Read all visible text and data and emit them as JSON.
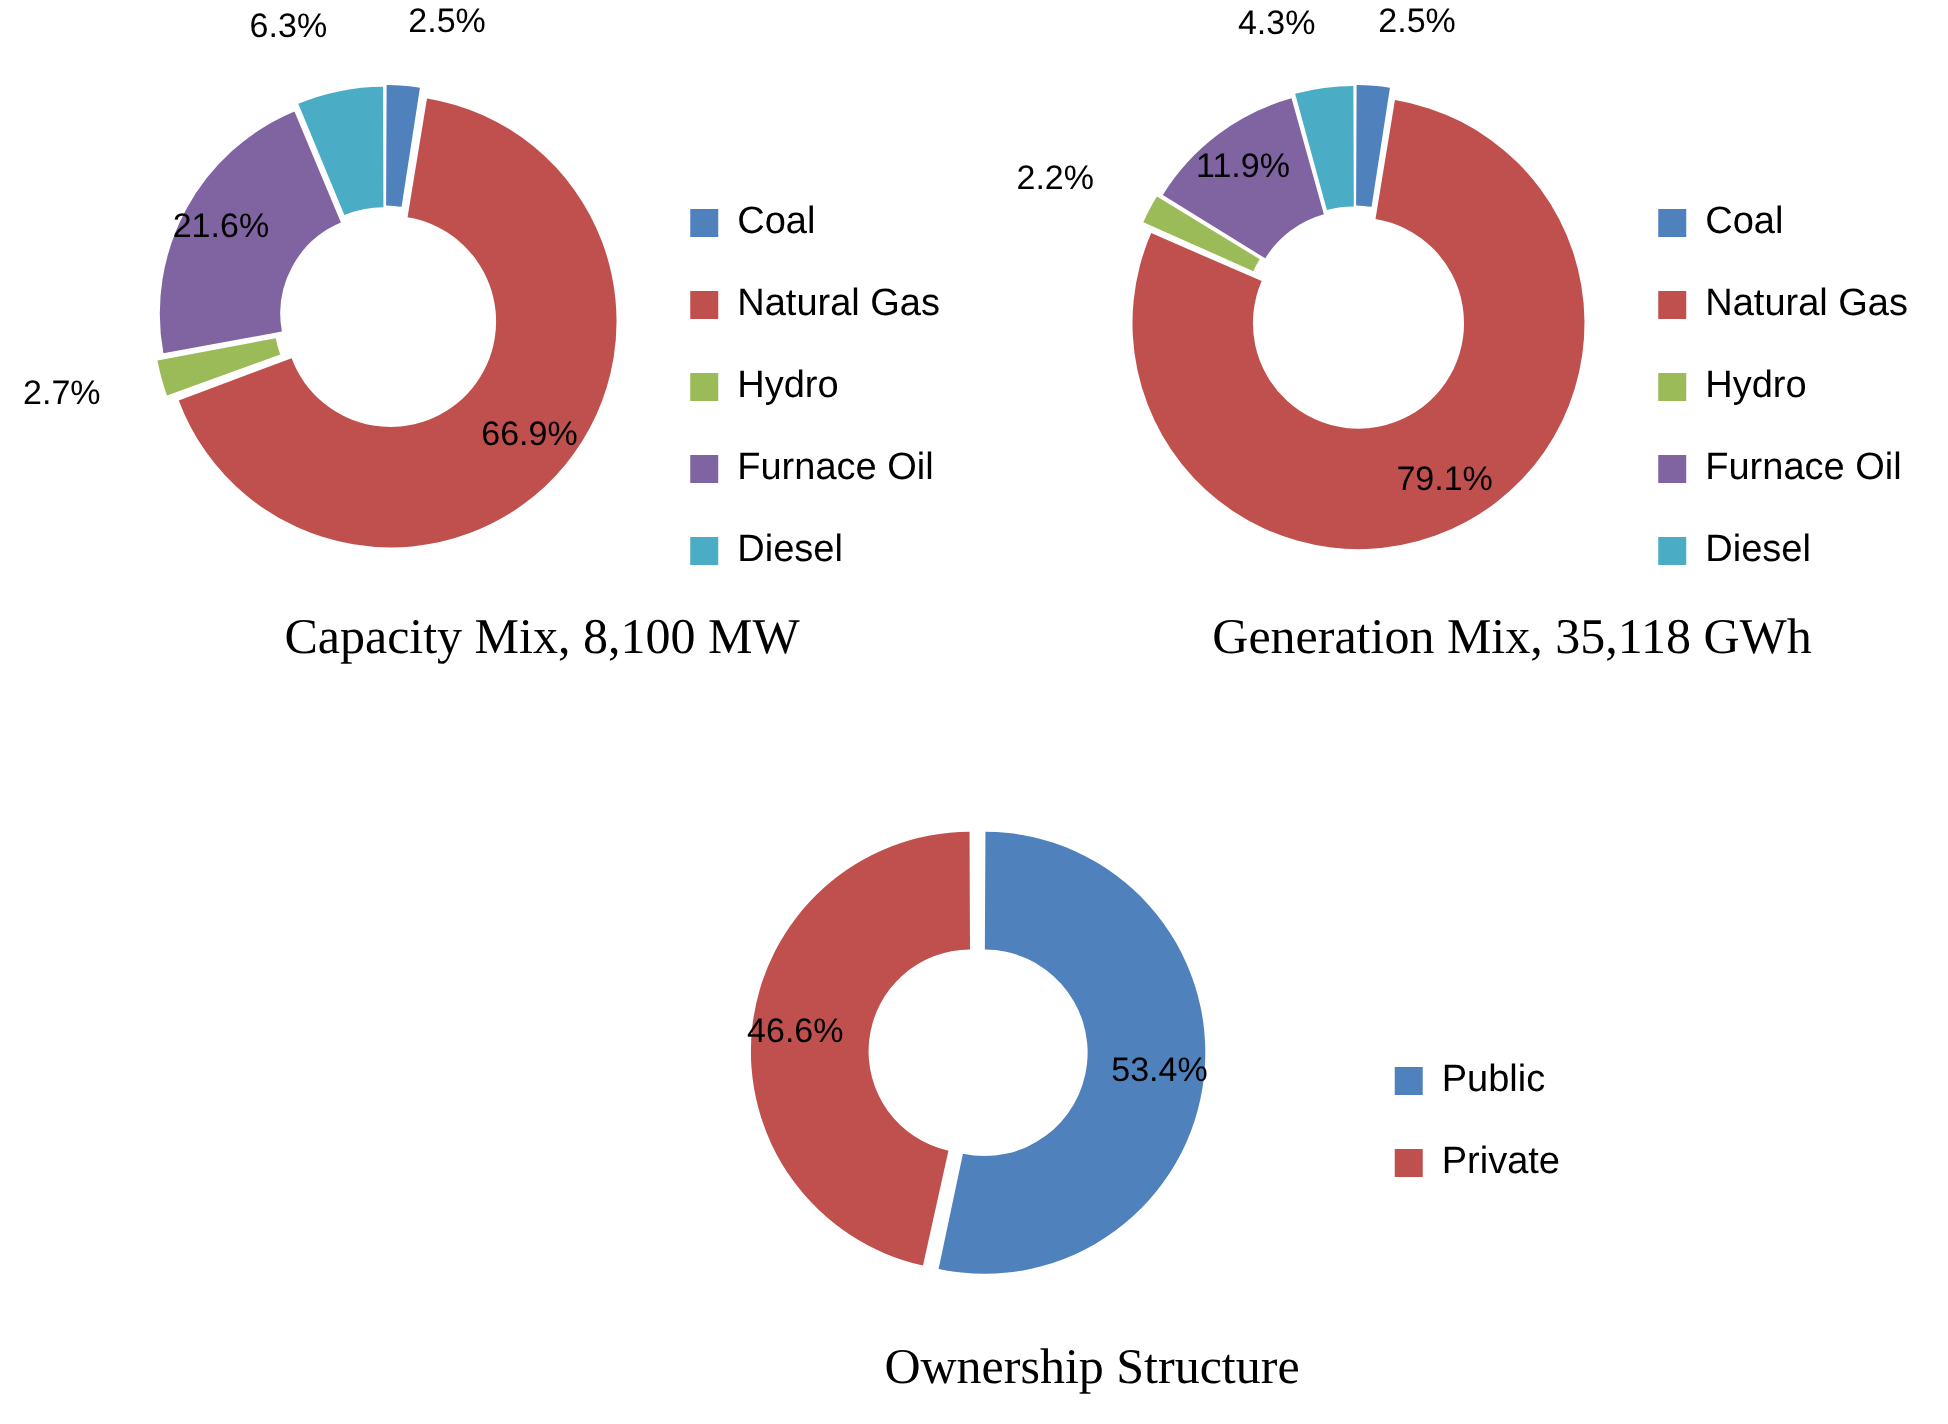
{
  "chart_data": [
    {
      "type": "donut",
      "title": "Capacity Mix, 8,100 MW",
      "categories": [
        "Coal",
        "Natural Gas",
        "Hydro",
        "Furnace Oil",
        "Diesel"
      ],
      "values": [
        2.5,
        66.9,
        2.7,
        21.6,
        6.3
      ],
      "colors": [
        "#4f81bd",
        "#c0504d",
        "#9bbb59",
        "#8064a2",
        "#4bacc6"
      ],
      "value_labels": [
        "2.5%",
        "66.9%",
        "2.7%",
        "21.6%",
        "6.3%"
      ],
      "legend": "right"
    },
    {
      "type": "donut",
      "title": "Generation Mix, 35,118 GWh",
      "categories": [
        "Coal",
        "Natural Gas",
        "Hydro",
        "Furnace Oil",
        "Diesel"
      ],
      "values": [
        2.5,
        79.1,
        2.2,
        11.9,
        4.3
      ],
      "colors": [
        "#4f81bd",
        "#c0504d",
        "#9bbb59",
        "#8064a2",
        "#4bacc6"
      ],
      "value_labels": [
        "2.5%",
        "79.1%",
        "2.2%",
        "11.9%",
        "4.3%"
      ],
      "legend": "right"
    },
    {
      "type": "donut",
      "title": "Ownership Structure",
      "categories": [
        "Public",
        "Private"
      ],
      "values": [
        53.4,
        46.6
      ],
      "colors": [
        "#4f81bd",
        "#c0504d"
      ],
      "value_labels": [
        "53.4%",
        "46.6%"
      ],
      "legend": "right"
    }
  ]
}
